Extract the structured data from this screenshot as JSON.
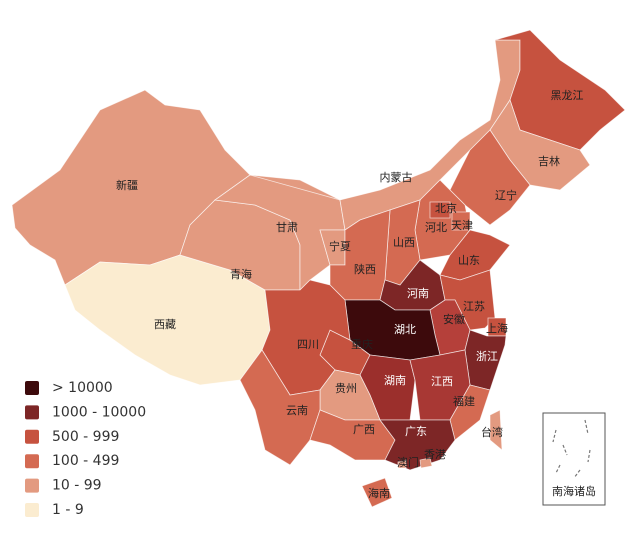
{
  "provinces": [
    {
      "name": "新疆",
      "color": "#e39a80"
    },
    {
      "name": "西藏",
      "color": "#fbecd0"
    },
    {
      "name": "青海",
      "color": "#e39a80"
    },
    {
      "name": "甘肃",
      "color": "#e39a80"
    },
    {
      "name": "内蒙古",
      "color": "#e39a80"
    },
    {
      "name": "黑龙江",
      "color": "#c6523f"
    },
    {
      "name": "吉林",
      "color": "#e39a80"
    },
    {
      "name": "辽宁",
      "color": "#d46a52"
    },
    {
      "name": "河北",
      "color": "#d46a52"
    },
    {
      "name": "北京",
      "color": "#c6523f"
    },
    {
      "name": "天津",
      "color": "#d46a52"
    },
    {
      "name": "山西",
      "color": "#d46a52"
    },
    {
      "name": "宁夏",
      "color": "#e39a80"
    },
    {
      "name": "陕西",
      "color": "#d46a52"
    },
    {
      "name": "山东",
      "color": "#c6523f"
    },
    {
      "name": "河南",
      "color": "#7d2626"
    },
    {
      "name": "江苏",
      "color": "#c6523f"
    },
    {
      "name": "安徽",
      "color": "#b5403a"
    },
    {
      "name": "上海",
      "color": "#c6523f"
    },
    {
      "name": "湖北",
      "color": "#3d0a0c"
    },
    {
      "name": "浙江",
      "color": "#7d2626"
    },
    {
      "name": "重庆",
      "color": "#c6523f"
    },
    {
      "name": "四川",
      "color": "#c6523f"
    },
    {
      "name": "湖南",
      "color": "#9b2f2c"
    },
    {
      "name": "江西",
      "color": "#a83834"
    },
    {
      "name": "福建",
      "color": "#d46a52"
    },
    {
      "name": "贵州",
      "color": "#e39a80"
    },
    {
      "name": "云南",
      "color": "#d46a52"
    },
    {
      "name": "广西",
      "color": "#d46a52"
    },
    {
      "name": "广东",
      "color": "#7d2626"
    },
    {
      "name": "海南",
      "color": "#d46a52"
    },
    {
      "name": "台湾",
      "color": "#e39a80"
    },
    {
      "name": "香港",
      "color": "#e39a80"
    },
    {
      "name": "澳门",
      "color": "#e39a80"
    }
  ],
  "legend": [
    {
      "label": "> 10000",
      "color": "#3d0a0c"
    },
    {
      "label": "1000 - 10000",
      "color": "#7d2626"
    },
    {
      "label": "500 - 999",
      "color": "#c6523f"
    },
    {
      "label": "100 - 499",
      "color": "#d46a52"
    },
    {
      "label": "10 - 99",
      "color": "#e39a80"
    },
    {
      "label": "1 - 9",
      "color": "#fbecd0"
    }
  ],
  "inset_label": "南海诸岛"
}
